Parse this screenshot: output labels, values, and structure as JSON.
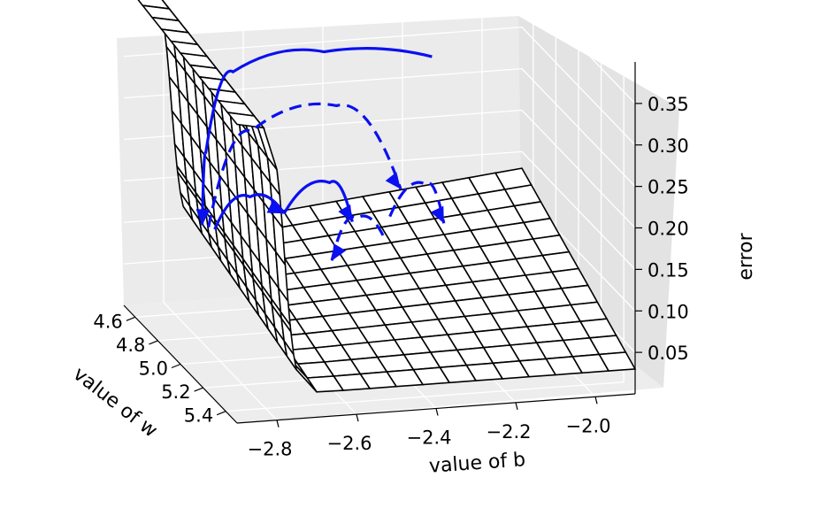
{
  "chart_data": {
    "type": "surface3d",
    "title": "",
    "xlabel": "value of b",
    "ylabel": "value of w",
    "zlabel": "error",
    "x_ticks": [
      "−2.8",
      "−2.6",
      "−2.4",
      "−2.2",
      "−2.0"
    ],
    "y_ticks": [
      "4.6",
      "4.8",
      "5.0",
      "5.2",
      "5.4"
    ],
    "z_ticks": [
      "0.05",
      "0.10",
      "0.15",
      "0.20",
      "0.25",
      "0.30",
      "0.35"
    ],
    "x_range": [
      -2.9,
      -1.9
    ],
    "y_range": [
      4.5,
      5.5
    ],
    "z_range": [
      0.0,
      0.4
    ],
    "surface_color": "#000000",
    "path_color": "#0a10f0",
    "paths": [
      {
        "style": "solid",
        "arrow_end": true,
        "points": [
          [
            -2.14,
            4.55,
            0.28
          ],
          [
            -2.42,
            4.58,
            0.3
          ],
          [
            -2.66,
            4.62,
            0.29
          ],
          [
            -2.74,
            4.66,
            0.2
          ],
          [
            -2.76,
            4.7,
            0.12
          ]
        ]
      },
      {
        "style": "dashed",
        "arrow_end": true,
        "points": [
          [
            -2.75,
            4.72,
            0.12
          ],
          [
            -2.62,
            4.64,
            0.22
          ],
          [
            -2.4,
            4.62,
            0.24
          ],
          [
            -2.25,
            4.66,
            0.14
          ]
        ]
      },
      {
        "style": "solid",
        "arrow_end": true,
        "points": [
          [
            -2.74,
            4.74,
            0.12
          ],
          [
            -2.64,
            4.7,
            0.15
          ],
          [
            -2.56,
            4.72,
            0.13
          ]
        ]
      },
      {
        "style": "solid",
        "arrow_end": true,
        "points": [
          [
            -2.56,
            4.72,
            0.13
          ],
          [
            -2.44,
            4.7,
            0.16
          ],
          [
            -2.4,
            4.76,
            0.12
          ]
        ]
      },
      {
        "style": "dashed",
        "arrow_end": true,
        "points": [
          [
            -2.3,
            4.74,
            0.12
          ],
          [
            -2.2,
            4.7,
            0.15
          ],
          [
            -2.17,
            4.76,
            0.11
          ]
        ]
      },
      {
        "style": "dashed",
        "arrow_end": true,
        "points": [
          [
            -2.34,
            4.82,
            0.11
          ],
          [
            -2.4,
            4.8,
            0.13
          ],
          [
            -2.48,
            4.86,
            0.09
          ]
        ]
      }
    ]
  }
}
